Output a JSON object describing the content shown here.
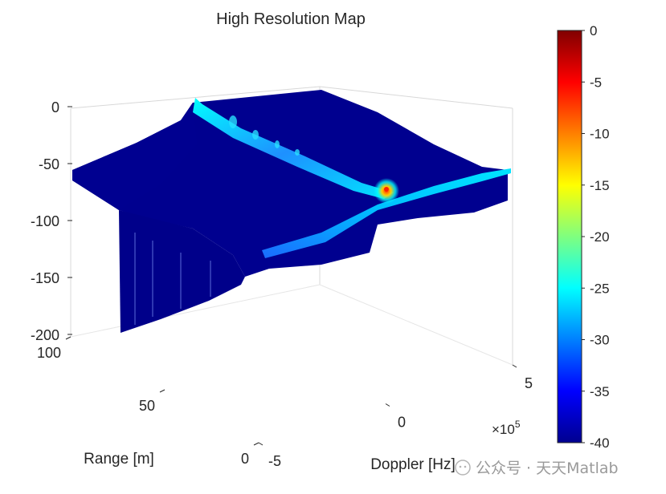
{
  "chart_data": {
    "type": "surface",
    "title": "High Resolution Map",
    "xlabel": "Doppler [Hz]",
    "ylabel": "Range [m]",
    "zlabel": "",
    "x_exponent_label": "×10",
    "x_exponent_power": "5",
    "xlim": [
      -5,
      5
    ],
    "ylim": [
      0,
      100
    ],
    "zlim": [
      -200,
      0
    ],
    "x_ticks": [
      "-5",
      "0",
      "5"
    ],
    "y_ticks": [
      "0",
      "50",
      "100"
    ],
    "z_ticks": [
      "0",
      "-50",
      "-100",
      "-150",
      "-200"
    ],
    "colormap": "jet",
    "colorbar": {
      "range": [
        -40,
        0
      ],
      "ticks": [
        "0",
        "-5",
        "-10",
        "-15",
        "-20",
        "-25",
        "-30",
        "-35",
        "-40"
      ]
    },
    "features": {
      "noise_floor_db": -40,
      "floor_depth_db": -50,
      "peak": {
        "doppler_e5": 0,
        "range_m": 50,
        "value_db": 0
      },
      "ridges": [
        "constant Doppler ridge at peak",
        "constant range ridge at peak"
      ]
    }
  },
  "watermark": "公众号 · 天天Matlab"
}
